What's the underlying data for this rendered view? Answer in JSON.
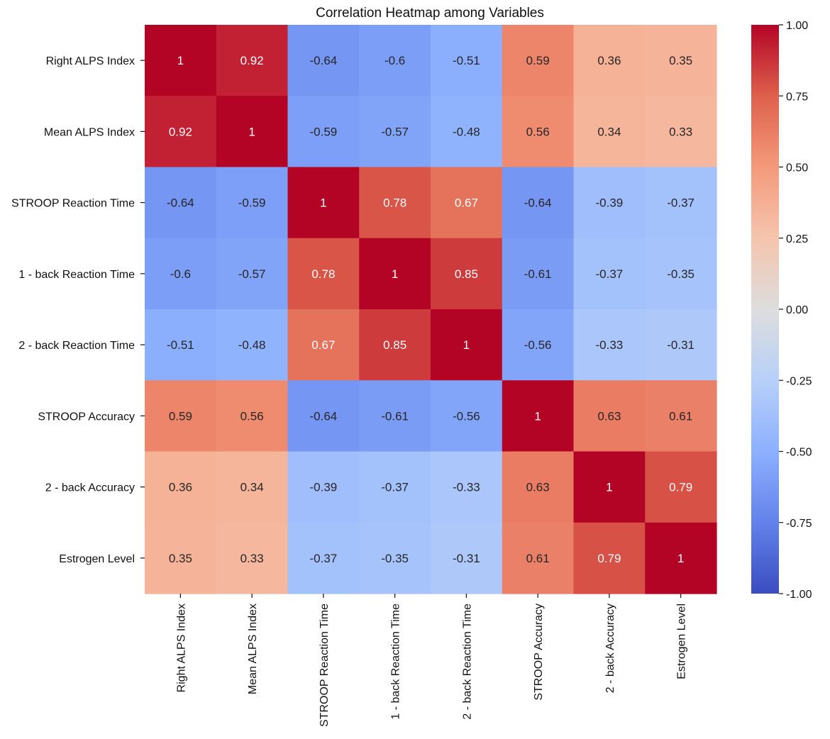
{
  "chart_data": {
    "type": "heatmap",
    "title": "Correlation Heatmap among Variables",
    "xlabel": "",
    "ylabel": "",
    "row_labels": [
      "Right ALPS Index",
      "Mean ALPS Index",
      "STROOP Reaction Time",
      "1 - back Reaction Time",
      "2 - back Reaction Time",
      "STROOP Accuracy",
      "2 - back Accuracy",
      "Estrogen Level"
    ],
    "col_labels": [
      "Right ALPS Index",
      "Mean ALPS Index",
      "STROOP Reaction Time",
      "1 - back Reaction Time",
      "2 - back Reaction Time",
      "STROOP Accuracy",
      "2 - back Accuracy",
      "Estrogen Level"
    ],
    "values": [
      [
        1,
        0.92,
        -0.64,
        -0.6,
        -0.51,
        0.59,
        0.36,
        0.35
      ],
      [
        0.92,
        1,
        -0.59,
        -0.57,
        -0.48,
        0.56,
        0.34,
        0.33
      ],
      [
        -0.64,
        -0.59,
        1,
        0.78,
        0.67,
        -0.64,
        -0.39,
        -0.37
      ],
      [
        -0.6,
        -0.57,
        0.78,
        1,
        0.85,
        -0.61,
        -0.37,
        -0.35
      ],
      [
        -0.51,
        -0.48,
        0.67,
        0.85,
        1,
        -0.56,
        -0.33,
        -0.31
      ],
      [
        0.59,
        0.56,
        -0.64,
        -0.61,
        -0.56,
        1,
        0.63,
        0.61
      ],
      [
        0.36,
        0.34,
        -0.39,
        -0.37,
        -0.33,
        0.63,
        1,
        0.79
      ],
      [
        0.35,
        0.33,
        -0.37,
        -0.35,
        -0.31,
        0.61,
        0.79,
        1
      ]
    ],
    "colormap": "coolwarm",
    "vmin": -1,
    "vmax": 1,
    "colorbar_ticks": [
      "1.00",
      "0.75",
      "0.50",
      "0.25",
      "0.00",
      "-0.25",
      "-0.50",
      "-0.75",
      "-1.00"
    ],
    "colorbar_tick_values": [
      1,
      0.75,
      0.5,
      0.25,
      0,
      -0.25,
      -0.5,
      -0.75,
      -1
    ]
  }
}
